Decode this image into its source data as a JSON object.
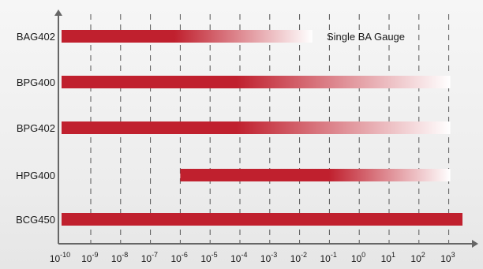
{
  "chart_data": {
    "type": "range-bar",
    "title": "",
    "xlabel": "",
    "ylabel": "",
    "x_scale": "log",
    "xlim": [
      1e-10,
      1000
    ],
    "x_ticks": [
      {
        "value": 1e-10,
        "base": "10",
        "exp": "-10"
      },
      {
        "value": 1e-09,
        "base": "10",
        "exp": "-9"
      },
      {
        "value": 1e-08,
        "base": "10",
        "exp": "-8"
      },
      {
        "value": 1e-07,
        "base": "10",
        "exp": "-7"
      },
      {
        "value": 1e-06,
        "base": "10",
        "exp": "-6"
      },
      {
        "value": 1e-05,
        "base": "10",
        "exp": "-5"
      },
      {
        "value": 0.0001,
        "base": "10",
        "exp": "-4"
      },
      {
        "value": 0.001,
        "base": "10",
        "exp": "-3"
      },
      {
        "value": 0.01,
        "base": "10",
        "exp": "-2"
      },
      {
        "value": 0.1,
        "base": "10",
        "exp": "-1"
      },
      {
        "value": 1,
        "base": "10",
        "exp": "0"
      },
      {
        "value": 10,
        "base": "10",
        "exp": "1"
      },
      {
        "value": 100,
        "base": "10",
        "exp": "2"
      },
      {
        "value": 1000,
        "base": "10",
        "exp": "3"
      }
    ],
    "grid": "vertical-dashed",
    "bar_color": "#c0202e",
    "bars": [
      {
        "label": "BAG402",
        "start": 1e-10,
        "end": 0.03,
        "fade": "end"
      },
      {
        "label": "BPG400",
        "start": 1e-10,
        "end": 1000,
        "fade": "end"
      },
      {
        "label": "BPG402",
        "start": 1e-10,
        "end": 1000,
        "fade": "end"
      },
      {
        "label": "HPG400",
        "start": 1e-06,
        "end": 1000,
        "fade": "end"
      },
      {
        "label": "BCG450",
        "start": 1e-10,
        "end": 1500,
        "fade": "none"
      }
    ],
    "annotations": [
      {
        "text": "Single BA Gauge",
        "bar": "BAG402"
      }
    ]
  }
}
